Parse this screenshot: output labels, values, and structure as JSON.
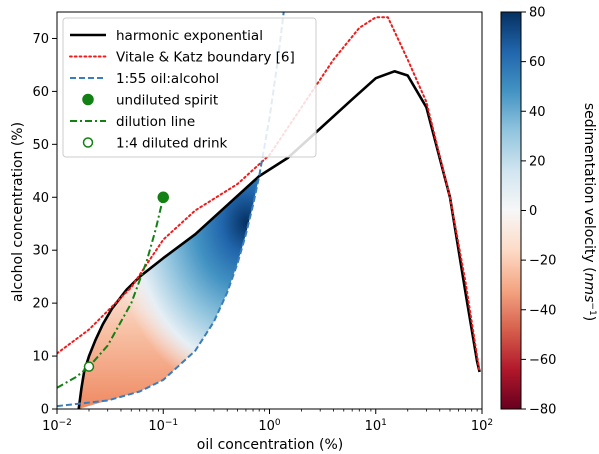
{
  "chart_data": {
    "type": "line",
    "title": "",
    "xlabel": "oil concentration (%)",
    "ylabel": "alcohol concentration (%)",
    "x_scale": "log",
    "xlim": [
      0.01,
      100
    ],
    "ylim": [
      0,
      75
    ],
    "x_ticks": [
      {
        "value": 0.01,
        "base": "10",
        "exp": "−2"
      },
      {
        "value": 0.1,
        "base": "10",
        "exp": "−1"
      },
      {
        "value": 1,
        "base": "10",
        "exp": "0"
      },
      {
        "value": 10,
        "base": "10",
        "exp": "1"
      },
      {
        "value": 100,
        "base": "10",
        "exp": "2"
      }
    ],
    "y_ticks": [
      "0",
      "10",
      "20",
      "30",
      "40",
      "50",
      "60",
      "70"
    ],
    "grid": false,
    "legend_position": "top-left",
    "series": [
      {
        "name": "harmonic exponential",
        "style": "solid",
        "color": "#000000",
        "points": [
          [
            0.016,
            0
          ],
          [
            0.017,
            4
          ],
          [
            0.018,
            7
          ],
          [
            0.02,
            10
          ],
          [
            0.023,
            13
          ],
          [
            0.027,
            16
          ],
          [
            0.033,
            19
          ],
          [
            0.045,
            22.5
          ],
          [
            0.06,
            25
          ],
          [
            0.1,
            28.5
          ],
          [
            0.2,
            33
          ],
          [
            0.4,
            38.5
          ],
          [
            0.8,
            44
          ],
          [
            1.5,
            47.5
          ],
          [
            3,
            53
          ],
          [
            6,
            58.5
          ],
          [
            10,
            62.5
          ],
          [
            15,
            63.8
          ],
          [
            20,
            63
          ],
          [
            30,
            57
          ],
          [
            50,
            40
          ],
          [
            70,
            22
          ],
          [
            90,
            9
          ],
          [
            95,
            7
          ]
        ]
      },
      {
        "name": "Vitale & Katz boundary [6]",
        "style": "dotted",
        "color": "#ee1c1c",
        "points": [
          [
            0.01,
            10.5
          ],
          [
            0.02,
            15
          ],
          [
            0.05,
            23
          ],
          [
            0.1,
            32
          ],
          [
            0.2,
            37.5
          ],
          [
            0.5,
            42.5
          ],
          [
            1,
            48
          ],
          [
            2,
            57
          ],
          [
            4,
            66
          ],
          [
            7,
            72
          ],
          [
            10,
            74
          ],
          [
            13,
            74
          ],
          [
            20,
            66
          ],
          [
            30,
            58
          ],
          [
            50,
            40
          ],
          [
            70,
            24
          ],
          [
            90,
            10
          ],
          [
            95,
            7
          ]
        ]
      },
      {
        "name": "1:55 oil:alcohol",
        "style": "dashed",
        "color": "#3a7dbb",
        "points": [
          [
            0.01,
            0.55
          ],
          [
            0.03,
            1.6
          ],
          [
            0.06,
            3.3
          ],
          [
            0.1,
            5.5
          ],
          [
            0.2,
            11
          ],
          [
            0.3,
            16.5
          ],
          [
            0.4,
            22
          ],
          [
            0.5,
            27.5
          ],
          [
            0.6,
            33
          ],
          [
            0.7,
            38.5
          ],
          [
            0.8,
            44
          ],
          [
            1,
            55
          ],
          [
            1.2,
            66
          ],
          [
            1.36,
            75
          ]
        ]
      },
      {
        "name": "undiluted spirit",
        "style": "marker-filled",
        "color": "#138013",
        "points": [
          [
            0.1,
            40
          ]
        ]
      },
      {
        "name": "dilution line",
        "style": "dashdot",
        "color": "#138013",
        "points": [
          [
            0.01,
            4
          ],
          [
            0.015,
            6
          ],
          [
            0.02,
            8
          ],
          [
            0.03,
            12
          ],
          [
            0.05,
            20
          ],
          [
            0.07,
            28
          ],
          [
            0.085,
            34
          ],
          [
            0.1,
            40
          ]
        ]
      },
      {
        "name": "1:4 diluted drink",
        "style": "marker-open",
        "color": "#138013",
        "points": [
          [
            0.02,
            8
          ]
        ]
      }
    ],
    "heatmap": {
      "name": "sedimentation velocity",
      "description_region": "between 1:55 oil:alcohol line and harmonic exponential curve",
      "colorbar_label": "sedimentation velocity (nms⁻¹)",
      "colorbar_label_main": "sedimentation velocity (",
      "colorbar_label_unit": "nms",
      "colorbar_label_sup": "−1",
      "colorbar_label_end": ")",
      "colorbar_range": [
        -80,
        80
      ],
      "colorbar_ticks": [
        "80",
        "60",
        "40",
        "20",
        "0",
        "−20",
        "−40",
        "−60",
        "−80"
      ],
      "colormap": [
        "#67001f",
        "#b2182b",
        "#d6604d",
        "#f4a582",
        "#fddbc7",
        "#f7f7f7",
        "#d1e5f0",
        "#92c5de",
        "#4393c3",
        "#2166ac",
        "#053061"
      ]
    }
  }
}
